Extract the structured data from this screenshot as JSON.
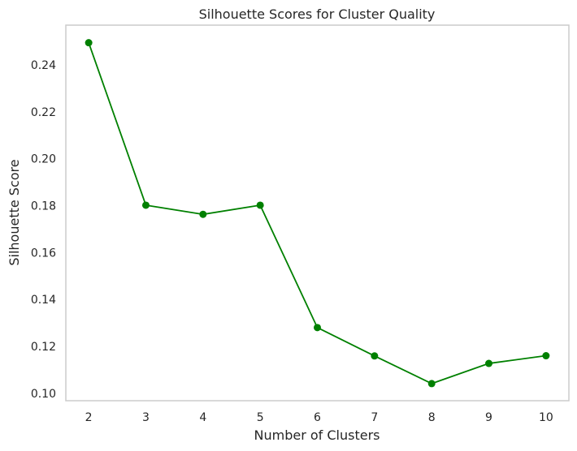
{
  "chart_data": {
    "type": "line",
    "title": "Silhouette Scores for Cluster Quality",
    "xlabel": "Number of Clusters",
    "ylabel": "Silhouette Score",
    "x": [
      2,
      3,
      4,
      5,
      6,
      7,
      8,
      9,
      10
    ],
    "series": [
      {
        "values": [
          0.2495,
          0.1802,
          0.1763,
          0.1802,
          0.128,
          0.1159,
          0.1041,
          0.1127,
          0.116
        ],
        "color": "#008000",
        "marker": "circle"
      }
    ],
    "xticks": [
      "2",
      "3",
      "4",
      "5",
      "6",
      "7",
      "8",
      "9",
      "10"
    ],
    "yticks": [
      "0.10",
      "0.12",
      "0.14",
      "0.16",
      "0.18",
      "0.20",
      "0.22",
      "0.24"
    ],
    "xlim": [
      1.6,
      10.4
    ],
    "ylim": [
      0.0968,
      0.257
    ],
    "grid": false,
    "frame_color": "#cccccc"
  }
}
